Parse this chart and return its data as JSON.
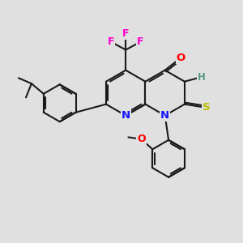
{
  "bg_color": "#e0e0e0",
  "bond_color": "#1a1a1a",
  "bond_width": 1.5,
  "atom_colors": {
    "N": "#1414ff",
    "O": "#ff0000",
    "S": "#bbbb00",
    "F": "#ff00cc",
    "H": "#5a9a8a",
    "C": "#1a1a1a"
  },
  "figsize": [
    3.0,
    3.0
  ],
  "dpi": 100,
  "ring_side": 0.95
}
